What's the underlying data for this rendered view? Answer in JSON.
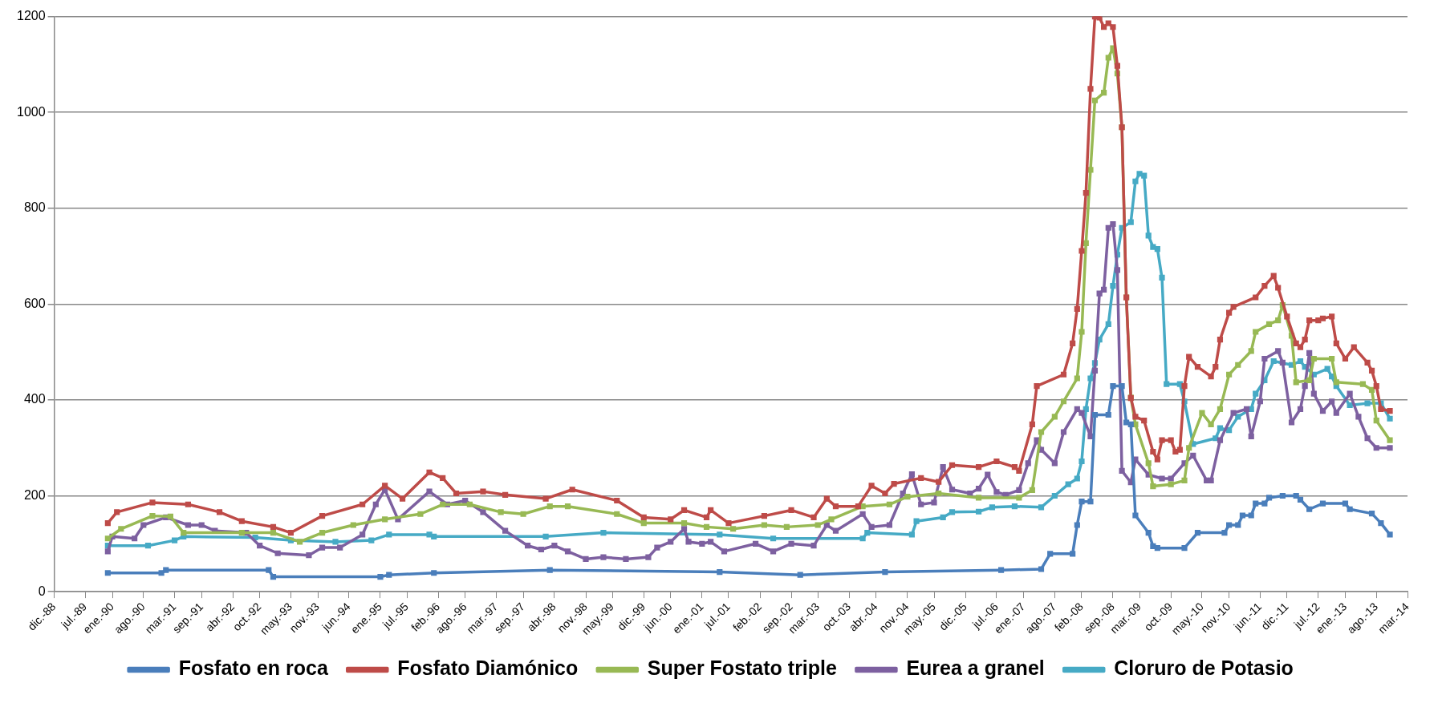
{
  "chart_data": {
    "type": "line",
    "xlim": [
      "1988-12",
      "2014-03"
    ],
    "xticks": [
      {
        "value": "1988-12",
        "label": "dic.-88"
      },
      {
        "value": "1989-07",
        "label": "jul.-89"
      },
      {
        "value": "1990-01",
        "label": "ene.-90"
      },
      {
        "value": "1990-08",
        "label": "ago.-90"
      },
      {
        "value": "1991-03",
        "label": "mar.-91"
      },
      {
        "value": "1991-09",
        "label": "sep.-91"
      },
      {
        "value": "1992-04",
        "label": "abr.-92"
      },
      {
        "value": "1992-10",
        "label": "oct.-92"
      },
      {
        "value": "1993-05",
        "label": "may.-93"
      },
      {
        "value": "1993-11",
        "label": "nov.-93"
      },
      {
        "value": "1994-06",
        "label": "jun.-94"
      },
      {
        "value": "1995-01",
        "label": "ene.-95"
      },
      {
        "value": "1995-07",
        "label": "jul.-95"
      },
      {
        "value": "1996-02",
        "label": "feb.-96"
      },
      {
        "value": "1996-08",
        "label": "ago.-96"
      },
      {
        "value": "1997-03",
        "label": "mar.-97"
      },
      {
        "value": "1997-09",
        "label": "sep.-97"
      },
      {
        "value": "1998-04",
        "label": "abr.-98"
      },
      {
        "value": "1998-11",
        "label": "nov.-98"
      },
      {
        "value": "1999-05",
        "label": "may.-99"
      },
      {
        "value": "1999-12",
        "label": "dic.-99"
      },
      {
        "value": "2000-06",
        "label": "jun.-00"
      },
      {
        "value": "2001-01",
        "label": "ene.-01"
      },
      {
        "value": "2001-07",
        "label": "jul.-01"
      },
      {
        "value": "2002-02",
        "label": "feb.-02"
      },
      {
        "value": "2002-09",
        "label": "sep.-02"
      },
      {
        "value": "2003-03",
        "label": "mar.-03"
      },
      {
        "value": "2003-10",
        "label": "oct.-03"
      },
      {
        "value": "2004-04",
        "label": "abr.-04"
      },
      {
        "value": "2004-11",
        "label": "nov.-04"
      },
      {
        "value": "2005-05",
        "label": "may.-05"
      },
      {
        "value": "2005-12",
        "label": "dic.-05"
      },
      {
        "value": "2006-07",
        "label": "jul.-06"
      },
      {
        "value": "2007-01",
        "label": "ene.-07"
      },
      {
        "value": "2007-08",
        "label": "ago.-07"
      },
      {
        "value": "2008-02",
        "label": "feb.-08"
      },
      {
        "value": "2008-09",
        "label": "sep.-08"
      },
      {
        "value": "2009-03",
        "label": "mar.-09"
      },
      {
        "value": "2009-10",
        "label": "oct.-09"
      },
      {
        "value": "2010-05",
        "label": "may.-10"
      },
      {
        "value": "2010-11",
        "label": "nov.-10"
      },
      {
        "value": "2011-06",
        "label": "jun.-11"
      },
      {
        "value": "2011-12",
        "label": "dic.-11"
      },
      {
        "value": "2012-07",
        "label": "jul.-12"
      },
      {
        "value": "2013-01",
        "label": "ene.-13"
      },
      {
        "value": "2013-08",
        "label": "ago.-13"
      },
      {
        "value": "2014-03",
        "label": "mar.-14"
      }
    ],
    "ylim": [
      0,
      1200
    ],
    "yticks": [
      0,
      200,
      400,
      600,
      800,
      1000,
      1200
    ],
    "grid": "y",
    "legend": "bottom",
    "marker": "square",
    "series": [
      {
        "name": "Fosfato en roca",
        "color": "#4a7ebb",
        "x": [
          "1989-12",
          "1990-12",
          "1991-01",
          "1992-12",
          "1993-01",
          "1995-01",
          "1995-03",
          "1996-01",
          "1998-03",
          "2001-05",
          "2002-11",
          "2004-06",
          "2006-08",
          "2007-05",
          "2007-07",
          "2007-12",
          "2008-01",
          "2008-02",
          "2008-04",
          "2008-05",
          "2008-08",
          "2008-09",
          "2008-11",
          "2008-12",
          "2009-01",
          "2009-02",
          "2009-05",
          "2009-06",
          "2009-07",
          "2010-01",
          "2010-04",
          "2010-10",
          "2010-11",
          "2011-01",
          "2011-02",
          "2011-04",
          "2011-05",
          "2011-07",
          "2011-08",
          "2011-11",
          "2012-02",
          "2012-03",
          "2012-05",
          "2012-08",
          "2013-01",
          "2013-02",
          "2013-07",
          "2013-09",
          "2013-11"
        ],
        "values": [
          39,
          39,
          45,
          45,
          31,
          31,
          35,
          39,
          45,
          41,
          35,
          41,
          45,
          47,
          79,
          79,
          139,
          188,
          188,
          369,
          369,
          429,
          429,
          353,
          349,
          159,
          123,
          95,
          91,
          91,
          123,
          123,
          139,
          139,
          159,
          159,
          184,
          184,
          196,
          200,
          200,
          192,
          172,
          184,
          184,
          172,
          163,
          143,
          119
        ]
      },
      {
        "name": "Fosfato Diamónico",
        "color": "#be4b48",
        "x": [
          "1989-12",
          "1990-02",
          "1990-10",
          "1991-06",
          "1992-01",
          "1992-06",
          "1993-01",
          "1993-05",
          "1993-12",
          "1994-09",
          "1995-02",
          "1995-06",
          "1995-12",
          "1996-03",
          "1996-06",
          "1996-12",
          "1997-05",
          "1998-02",
          "1998-08",
          "1999-06",
          "1999-12",
          "2000-06",
          "2000-09",
          "2001-02",
          "2001-03",
          "2001-07",
          "2002-03",
          "2002-09",
          "2003-02",
          "2003-05",
          "2003-07",
          "2003-12",
          "2004-03",
          "2004-06",
          "2004-08",
          "2005-02",
          "2005-06",
          "2005-09",
          "2006-03",
          "2006-07",
          "2006-11",
          "2006-12",
          "2007-03",
          "2007-04",
          "2007-10",
          "2007-12",
          "2008-01",
          "2008-02",
          "2008-03",
          "2008-04",
          "2008-05",
          "2008-06",
          "2008-07",
          "2008-08",
          "2008-09",
          "2008-10",
          "2008-11",
          "2008-12",
          "2009-01",
          "2009-02",
          "2009-04",
          "2009-06",
          "2009-07",
          "2009-08",
          "2009-10",
          "2009-11",
          "2009-12",
          "2010-01",
          "2010-02",
          "2010-04",
          "2010-07",
          "2010-08",
          "2010-09",
          "2010-11",
          "2010-12",
          "2011-05",
          "2011-07",
          "2011-09",
          "2011-10",
          "2011-12",
          "2012-02",
          "2012-03",
          "2012-04",
          "2012-05",
          "2012-07",
          "2012-08",
          "2012-10",
          "2012-11",
          "2013-01",
          "2013-03",
          "2013-06",
          "2013-07",
          "2013-08",
          "2013-09",
          "2013-11"
        ],
        "values": [
          143,
          166,
          186,
          182,
          166,
          147,
          135,
          123,
          158,
          182,
          221,
          194,
          249,
          237,
          205,
          209,
          202,
          194,
          213,
          190,
          155,
          151,
          170,
          155,
          170,
          143,
          158,
          170,
          155,
          194,
          178,
          178,
          221,
          205,
          225,
          237,
          229,
          264,
          260,
          272,
          260,
          252,
          349,
          429,
          453,
          518,
          590,
          711,
          832,
          1049,
          1200,
          1198,
          1178,
          1186,
          1178,
          1097,
          969,
          614,
          404,
          365,
          357,
          292,
          276,
          316,
          316,
          292,
          296,
          429,
          490,
          469,
          449,
          469,
          526,
          582,
          594,
          614,
          638,
          659,
          634,
          574,
          518,
          510,
          526,
          566,
          566,
          570,
          574,
          518,
          486,
          510,
          478,
          461,
          429,
          381,
          377
        ]
      },
      {
        "name": "Super Fostato triple",
        "color": "#98b954",
        "x": [
          "1989-12",
          "1990-03",
          "1990-10",
          "1991-02",
          "1991-05",
          "1992-06",
          "1993-01",
          "1993-07",
          "1993-12",
          "1994-07",
          "1995-02",
          "1995-10",
          "1996-03",
          "1996-09",
          "1997-04",
          "1997-09",
          "1998-03",
          "1998-07",
          "1999-06",
          "1999-12",
          "2000-09",
          "2001-02",
          "2001-08",
          "2002-03",
          "2002-08",
          "2003-03",
          "2003-06",
          "2004-01",
          "2004-07",
          "2004-11",
          "2005-06",
          "2006-03",
          "2006-12",
          "2007-03",
          "2007-05",
          "2007-08",
          "2007-10",
          "2008-01",
          "2008-02",
          "2008-03",
          "2008-04",
          "2008-05",
          "2008-07",
          "2008-08",
          "2008-09",
          "2008-10",
          "2008-11",
          "2008-12",
          "2009-01",
          "2009-02",
          "2009-05",
          "2009-06",
          "2009-10",
          "2010-01",
          "2010-02",
          "2010-05",
          "2010-07",
          "2010-09",
          "2010-11",
          "2011-01",
          "2011-04",
          "2011-05",
          "2011-08",
          "2011-10",
          "2011-11",
          "2012-01",
          "2012-02",
          "2012-05",
          "2012-06",
          "2012-10",
          "2012-11",
          "2013-05",
          "2013-07",
          "2013-08",
          "2013-11"
        ],
        "values": [
          111,
          131,
          158,
          157,
          123,
          123,
          123,
          104,
          123,
          139,
          151,
          162,
          182,
          182,
          166,
          162,
          178,
          178,
          162,
          143,
          143,
          135,
          131,
          139,
          135,
          139,
          151,
          178,
          182,
          198,
          205,
          196,
          196,
          212,
          333,
          365,
          397,
          445,
          542,
          727,
          880,
          1025,
          1041,
          1114,
          1134,
          1081,
          969,
          614,
          405,
          349,
          268,
          220,
          224,
          232,
          300,
          373,
          349,
          381,
          453,
          473,
          502,
          542,
          558,
          566,
          598,
          534,
          437,
          441,
          486,
          486,
          437,
          433,
          421,
          357,
          316
        ]
      },
      {
        "name": "Eurea a granel",
        "color": "#7d60a0",
        "x": [
          "1989-12",
          "1990-01",
          "1990-06",
          "1990-08",
          "1991-01",
          "1991-06",
          "1991-09",
          "1991-12",
          "1992-07",
          "1992-10",
          "1993-02",
          "1993-09",
          "1993-12",
          "1994-04",
          "1994-09",
          "1994-12",
          "1995-02",
          "1995-05",
          "1995-12",
          "1996-04",
          "1996-08",
          "1996-12",
          "1997-05",
          "1997-10",
          "1998-01",
          "1998-04",
          "1998-07",
          "1998-11",
          "1999-03",
          "1999-08",
          "2000-01",
          "2000-03",
          "2000-06",
          "2000-09",
          "2000-10",
          "2001-01",
          "2001-03",
          "2001-06",
          "2002-01",
          "2002-05",
          "2002-09",
          "2003-02",
          "2003-05",
          "2003-07",
          "2004-01",
          "2004-03",
          "2004-07",
          "2004-10",
          "2004-12",
          "2005-02",
          "2005-05",
          "2005-07",
          "2005-09",
          "2006-01",
          "2006-03",
          "2006-05",
          "2006-07",
          "2006-09",
          "2006-12",
          "2007-02",
          "2007-04",
          "2007-05",
          "2007-08",
          "2007-10",
          "2008-01",
          "2008-02",
          "2008-04",
          "2008-05",
          "2008-06",
          "2008-07",
          "2008-08",
          "2008-09",
          "2008-10",
          "2008-11",
          "2009-01",
          "2009-02",
          "2009-05",
          "2009-08",
          "2009-10",
          "2010-01",
          "2010-03",
          "2010-06",
          "2010-07",
          "2010-09",
          "2010-12",
          "2011-03",
          "2011-04",
          "2011-06",
          "2011-07",
          "2011-10",
          "2011-11",
          "2012-01",
          "2012-03",
          "2012-04",
          "2012-05",
          "2012-06",
          "2012-08",
          "2012-10",
          "2012-11",
          "2013-02",
          "2013-04",
          "2013-06",
          "2013-08",
          "2013-11"
        ],
        "values": [
          84,
          115,
          111,
          139,
          155,
          139,
          139,
          127,
          123,
          96,
          80,
          76,
          92,
          92,
          119,
          182,
          213,
          151,
          209,
          182,
          190,
          166,
          127,
          96,
          88,
          96,
          84,
          68,
          72,
          68,
          72,
          92,
          104,
          131,
          104,
          100,
          104,
          84,
          100,
          84,
          100,
          96,
          139,
          127,
          162,
          135,
          139,
          205,
          245,
          182,
          186,
          260,
          213,
          205,
          215,
          244,
          208,
          202,
          212,
          268,
          316,
          296,
          268,
          333,
          381,
          373,
          324,
          461,
          622,
          630,
          759,
          767,
          671,
          252,
          228,
          276,
          244,
          236,
          236,
          268,
          284,
          232,
          232,
          316,
          373,
          381,
          324,
          397,
          486,
          502,
          478,
          353,
          381,
          429,
          498,
          413,
          377,
          397,
          373,
          413,
          365,
          320,
          300,
          300
        ]
      },
      {
        "name": "Cloruro de Potasio",
        "color": "#46aac5",
        "x": [
          "1989-12",
          "1990-09",
          "1991-03",
          "1991-05",
          "1992-09",
          "1993-05",
          "1994-03",
          "1994-11",
          "1995-03",
          "1995-12",
          "1996-01",
          "1998-02",
          "1999-03",
          "2001-05",
          "2002-05",
          "2004-01",
          "2004-02",
          "2004-12",
          "2005-01",
          "2005-07",
          "2005-09",
          "2006-03",
          "2006-06",
          "2006-11",
          "2007-05",
          "2007-08",
          "2007-11",
          "2008-01",
          "2008-02",
          "2008-03",
          "2008-04",
          "2008-05",
          "2008-06",
          "2008-08",
          "2008-09",
          "2008-10",
          "2008-11",
          "2009-01",
          "2009-02",
          "2009-03",
          "2009-04",
          "2009-05",
          "2009-06",
          "2009-07",
          "2009-08",
          "2009-09",
          "2009-12",
          "2010-01",
          "2010-03",
          "2010-08",
          "2010-09",
          "2010-11",
          "2011-01",
          "2011-04",
          "2011-05",
          "2011-07",
          "2011-09",
          "2012-01",
          "2012-03",
          "2012-04",
          "2012-06",
          "2012-09",
          "2012-10",
          "2012-11",
          "2013-02",
          "2013-06",
          "2013-09",
          "2013-11"
        ],
        "values": [
          96,
          96,
          107,
          115,
          113,
          107,
          104,
          107,
          119,
          119,
          115,
          115,
          123,
          119,
          111,
          111,
          123,
          119,
          147,
          155,
          166,
          167,
          176,
          178,
          176,
          200,
          224,
          236,
          272,
          381,
          445,
          477,
          526,
          558,
          638,
          703,
          759,
          771,
          856,
          872,
          868,
          743,
          719,
          715,
          655,
          433,
          433,
          397,
          308,
          320,
          341,
          337,
          365,
          381,
          413,
          441,
          481,
          473,
          481,
          469,
          453,
          465,
          449,
          429,
          389,
          393,
          393,
          361
        ]
      }
    ]
  }
}
